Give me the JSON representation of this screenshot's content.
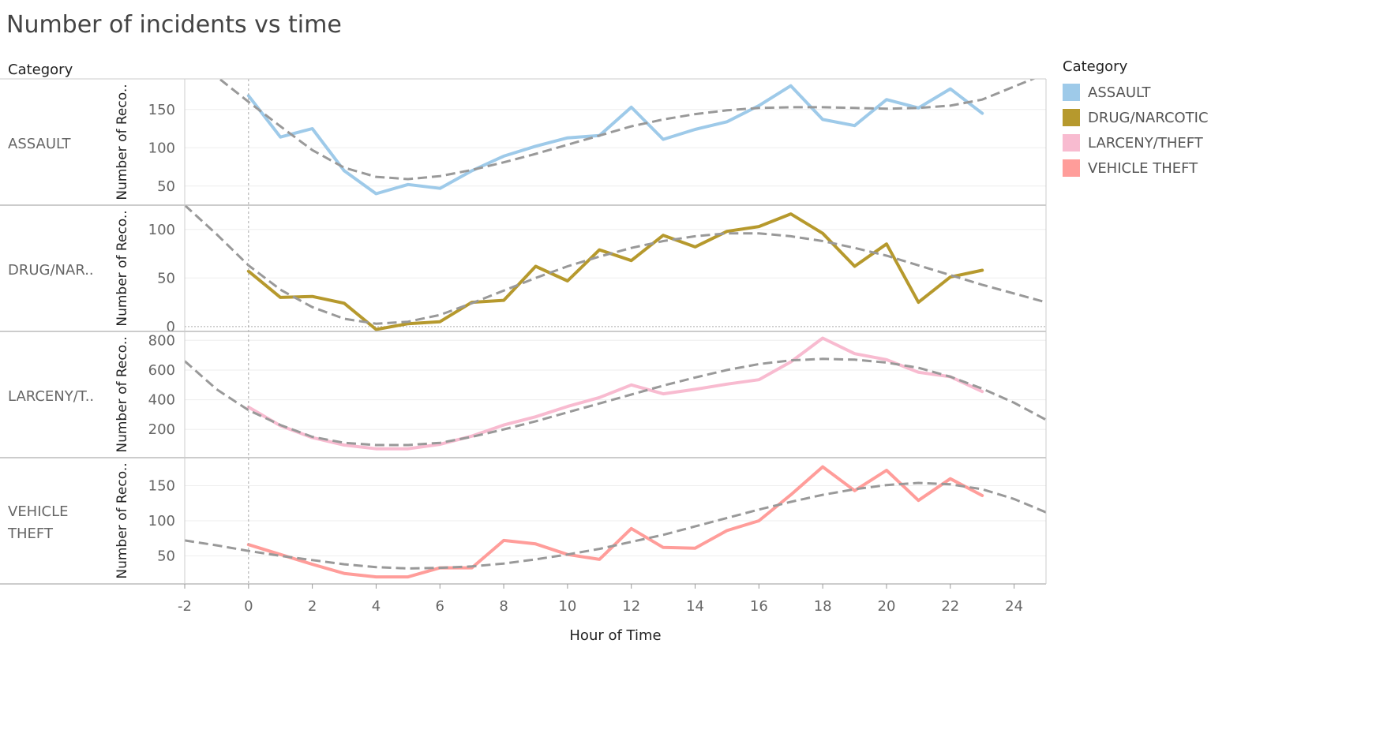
{
  "title": "Number of incidents vs time",
  "legend": {
    "title": "Category",
    "items": [
      {
        "label": "ASSAULT",
        "color": "#9ECAE9"
      },
      {
        "label": "DRUG/NARCOTIC",
        "color": "#B6992D"
      },
      {
        "label": "LARCENY/THEFT",
        "color": "#F8BBD0"
      },
      {
        "label": "VEHICLE THEFT",
        "color": "#FF9D9A"
      }
    ]
  },
  "chart_data": {
    "type": "line",
    "row_header": "Category",
    "xlabel": "Hour of Time",
    "ylabel": "Number of Reco..",
    "xlim": [
      -2,
      25
    ],
    "xticks": [
      -2,
      0,
      2,
      4,
      6,
      8,
      10,
      12,
      14,
      16,
      18,
      20,
      22,
      24
    ],
    "reference_line_x": 0,
    "trend_line": "dashed polynomial",
    "panels": [
      {
        "row_label": "ASSAULT",
        "color": "#9ECAE9",
        "ylim": [
          25,
          190
        ],
        "yticks": [
          50,
          100,
          150
        ],
        "x": [
          0,
          1,
          2,
          3,
          4,
          5,
          6,
          7,
          8,
          9,
          10,
          11,
          12,
          13,
          14,
          15,
          16,
          17,
          18,
          19,
          20,
          21,
          22,
          23
        ],
        "values": [
          168,
          114,
          125,
          70,
          40,
          52,
          47,
          70,
          89,
          102,
          113,
          116,
          153,
          111,
          124,
          134,
          155,
          181,
          137,
          129,
          163,
          152,
          177,
          145
        ],
        "trend": [
          [
            -2,
            220
          ],
          [
            -1,
            193
          ],
          [
            0,
            160
          ],
          [
            1,
            128
          ],
          [
            2,
            97
          ],
          [
            3,
            74
          ],
          [
            4,
            62
          ],
          [
            5,
            59
          ],
          [
            6,
            63
          ],
          [
            7,
            71
          ],
          [
            8,
            81
          ],
          [
            9,
            92
          ],
          [
            10,
            104
          ],
          [
            11,
            116
          ],
          [
            12,
            128
          ],
          [
            13,
            137
          ],
          [
            14,
            144
          ],
          [
            15,
            149
          ],
          [
            16,
            152
          ],
          [
            17,
            153
          ],
          [
            18,
            153
          ],
          [
            19,
            152
          ],
          [
            20,
            151
          ],
          [
            21,
            152
          ],
          [
            22,
            155
          ],
          [
            23,
            163
          ],
          [
            24,
            180
          ],
          [
            25,
            197
          ]
        ]
      },
      {
        "row_label": "DRUG/NAR..",
        "color": "#B6992D",
        "ylim": [
          -5,
          125
        ],
        "yticks": [
          0,
          50,
          100
        ],
        "x": [
          0,
          1,
          2,
          3,
          4,
          5,
          6,
          7,
          8,
          9,
          10,
          11,
          12,
          13,
          14,
          15,
          16,
          17,
          18,
          19,
          20,
          21,
          22,
          23
        ],
        "values": [
          57,
          30,
          31,
          24,
          -3,
          3,
          5,
          25,
          27,
          62,
          47,
          79,
          68,
          94,
          82,
          98,
          103,
          116,
          96,
          62,
          85,
          25,
          51,
          58
        ],
        "trend": [
          [
            -2,
            125
          ],
          [
            -1,
            95
          ],
          [
            0,
            63
          ],
          [
            1,
            38
          ],
          [
            2,
            20
          ],
          [
            3,
            8
          ],
          [
            4,
            3
          ],
          [
            5,
            5
          ],
          [
            6,
            12
          ],
          [
            7,
            24
          ],
          [
            8,
            37
          ],
          [
            9,
            50
          ],
          [
            10,
            62
          ],
          [
            11,
            72
          ],
          [
            12,
            81
          ],
          [
            13,
            88
          ],
          [
            14,
            93
          ],
          [
            15,
            96
          ],
          [
            16,
            96
          ],
          [
            17,
            93
          ],
          [
            18,
            88
          ],
          [
            19,
            81
          ],
          [
            20,
            73
          ],
          [
            21,
            63
          ],
          [
            22,
            53
          ],
          [
            23,
            43
          ],
          [
            24,
            34
          ],
          [
            25,
            25
          ]
        ]
      },
      {
        "row_label": "LARCENY/T..",
        "color": "#F8BBD0",
        "ylim": [
          10,
          860
        ],
        "yticks": [
          200,
          400,
          600,
          800
        ],
        "x": [
          0,
          1,
          2,
          3,
          4,
          5,
          6,
          7,
          8,
          9,
          10,
          11,
          12,
          13,
          14,
          15,
          16,
          17,
          18,
          19,
          20,
          21,
          22,
          23
        ],
        "values": [
          350,
          225,
          145,
          95,
          70,
          70,
          100,
          155,
          230,
          285,
          355,
          415,
          500,
          440,
          470,
          505,
          535,
          655,
          815,
          710,
          670,
          585,
          555,
          455
        ],
        "trend": [
          [
            -2,
            660
          ],
          [
            -1,
            470
          ],
          [
            0,
            330
          ],
          [
            1,
            230
          ],
          [
            2,
            150
          ],
          [
            3,
            110
          ],
          [
            4,
            95
          ],
          [
            5,
            95
          ],
          [
            6,
            110
          ],
          [
            7,
            150
          ],
          [
            8,
            200
          ],
          [
            9,
            255
          ],
          [
            10,
            315
          ],
          [
            11,
            375
          ],
          [
            12,
            435
          ],
          [
            13,
            495
          ],
          [
            14,
            550
          ],
          [
            15,
            600
          ],
          [
            16,
            640
          ],
          [
            17,
            665
          ],
          [
            18,
            675
          ],
          [
            19,
            670
          ],
          [
            20,
            650
          ],
          [
            21,
            615
          ],
          [
            22,
            555
          ],
          [
            23,
            475
          ],
          [
            24,
            380
          ],
          [
            25,
            265
          ]
        ]
      },
      {
        "row_label": "VEHICLE THEFT",
        "color": "#FF9D9A",
        "ylim": [
          10,
          190
        ],
        "yticks": [
          50,
          100,
          150
        ],
        "x": [
          0,
          1,
          2,
          3,
          4,
          5,
          6,
          7,
          8,
          9,
          10,
          11,
          12,
          13,
          14,
          15,
          16,
          17,
          18,
          19,
          20,
          21,
          22,
          23
        ],
        "values": [
          66,
          52,
          38,
          25,
          20,
          20,
          33,
          33,
          72,
          67,
          52,
          45,
          89,
          62,
          61,
          86,
          100,
          137,
          177,
          143,
          172,
          129,
          160,
          136
        ],
        "trend": [
          [
            -2,
            72
          ],
          [
            -1,
            65
          ],
          [
            0,
            57
          ],
          [
            1,
            50
          ],
          [
            2,
            44
          ],
          [
            3,
            38
          ],
          [
            4,
            34
          ],
          [
            5,
            32
          ],
          [
            6,
            33
          ],
          [
            7,
            35
          ],
          [
            8,
            39
          ],
          [
            9,
            45
          ],
          [
            10,
            52
          ],
          [
            11,
            60
          ],
          [
            12,
            70
          ],
          [
            13,
            80
          ],
          [
            14,
            92
          ],
          [
            15,
            104
          ],
          [
            16,
            116
          ],
          [
            17,
            127
          ],
          [
            18,
            137
          ],
          [
            19,
            145
          ],
          [
            20,
            151
          ],
          [
            21,
            154
          ],
          [
            22,
            152
          ],
          [
            23,
            145
          ],
          [
            24,
            131
          ],
          [
            25,
            112
          ]
        ]
      }
    ]
  }
}
